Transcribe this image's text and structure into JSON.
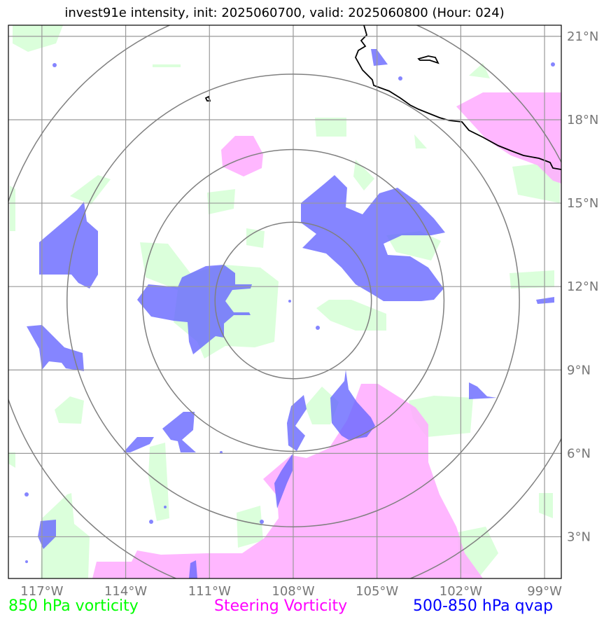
{
  "title": "invest91e intensity, init: 2025060700, valid: 2025060800 (Hour: 024)",
  "map": {
    "projection": "plate-carree",
    "lon_range": [
      -118.2,
      -98.4
    ],
    "lat_range": [
      1.5,
      21.4
    ],
    "center": {
      "lon": -108.0,
      "lat": 11.5
    },
    "range_rings_deg": [
      2.8,
      5.4,
      8.1,
      10.8
    ],
    "gridlines": true,
    "lon_ticks": [
      {
        "value": -117,
        "label": "117°W"
      },
      {
        "value": -114,
        "label": "114°W"
      },
      {
        "value": -111,
        "label": "111°W"
      },
      {
        "value": -108,
        "label": "108°W"
      },
      {
        "value": -105,
        "label": "105°W"
      },
      {
        "value": -102,
        "label": "102°W"
      },
      {
        "value": -99,
        "label": "99°W"
      }
    ],
    "lat_ticks": [
      {
        "value": 3,
        "label": "3°N"
      },
      {
        "value": 6,
        "label": "6°N"
      },
      {
        "value": 9,
        "label": "9°N"
      },
      {
        "value": 12,
        "label": "12°N"
      },
      {
        "value": 15,
        "label": "15°N"
      },
      {
        "value": 18,
        "label": "18°N"
      },
      {
        "value": 21,
        "label": "21°N"
      }
    ]
  },
  "layers": {
    "vorticity_850": {
      "label": "850 hPa vorticity",
      "color": "#ccffcc",
      "legend_color": "#00ff00"
    },
    "steering_vorticity": {
      "label": "Steering Vorticity",
      "color": "#ffaaff",
      "legend_color": "#ff00ff"
    },
    "qvap_500_850": {
      "label": "500-850 hPa qvap",
      "color": "#6666ff",
      "legend_color": "#0000ff"
    }
  }
}
